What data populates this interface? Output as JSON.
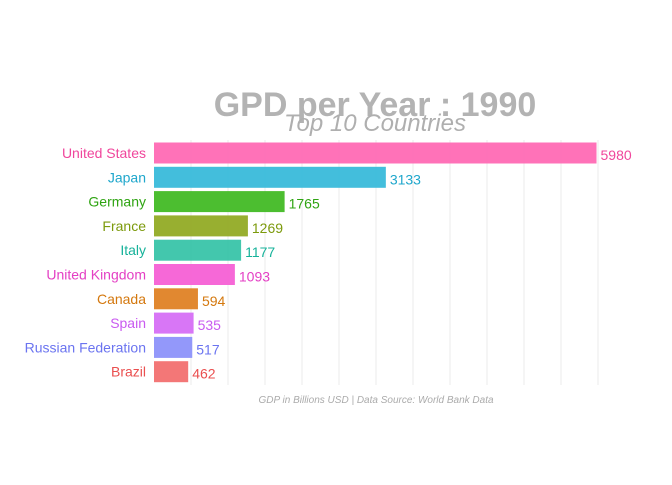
{
  "chart_data": {
    "type": "bar",
    "orientation": "horizontal",
    "title": "GPD per Year :  1990",
    "subtitle": "Top 10 Countries",
    "caption": "GDP in Billions USD | Data Source: World Bank Data",
    "xlim": [
      0,
      6000
    ],
    "grid": true,
    "legend": "none",
    "categories": [
      "United States",
      "Japan",
      "Germany",
      "France",
      "Italy",
      "United Kingdom",
      "Canada",
      "Spain",
      "Russian Federation",
      "Brazil"
    ],
    "values": [
      5980,
      3133,
      1765,
      1269,
      1177,
      1093,
      594,
      535,
      517,
      462
    ],
    "value_labels": [
      "5980",
      "3133",
      "1765",
      "1269",
      "1177",
      "1093",
      "594",
      "535",
      "517",
      "462"
    ],
    "colors": [
      "#FF66B2",
      "#33B8D9",
      "#3DB81E",
      "#8FA81E",
      "#33C2A6",
      "#F55BD4",
      "#DE7E1E",
      "#D56AF5",
      "#8A8FFA",
      "#F26B6B"
    ],
    "label_colors": [
      "#F0469C",
      "#1FA7CC",
      "#2FA412",
      "#7C9A0C",
      "#16B29A",
      "#E43FC4",
      "#D4780E",
      "#C95AF0",
      "#6B74F0",
      "#EA4F4F"
    ]
  }
}
